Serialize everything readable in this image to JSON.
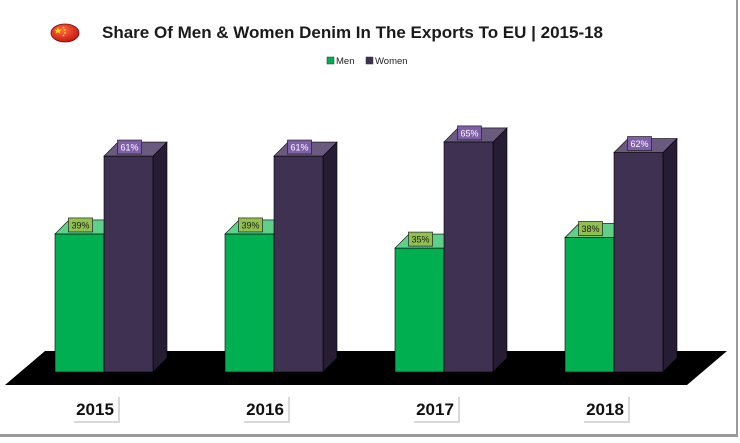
{
  "chart_data": {
    "type": "bar",
    "title": "Share Of Men & Women Denim In The Exports To EU | 2015-18",
    "categories": [
      "2015",
      "2016",
      "2017",
      "2018"
    ],
    "series": [
      {
        "name": "Men",
        "values": [
          39,
          39,
          35,
          38
        ],
        "labels": [
          "39%",
          "39%",
          "35%",
          "38%"
        ],
        "color": "#00b050",
        "side_color": "#007a36",
        "top_color": "#5fd08a",
        "label_bg": "#92c050"
      },
      {
        "name": "Women",
        "values": [
          61,
          61,
          65,
          62
        ],
        "labels": [
          "61%",
          "61%",
          "65%",
          "62%"
        ],
        "color": "#3f3151",
        "side_color": "#261c33",
        "top_color": "#6b5a80",
        "label_bg": "#7f5fa8"
      }
    ],
    "ylim": [
      0,
      100
    ],
    "unit": "%",
    "legend": "top-center",
    "xlabel": "",
    "ylabel": "",
    "floor_color": "#000000",
    "flag_icon": "china-flag-icon"
  }
}
